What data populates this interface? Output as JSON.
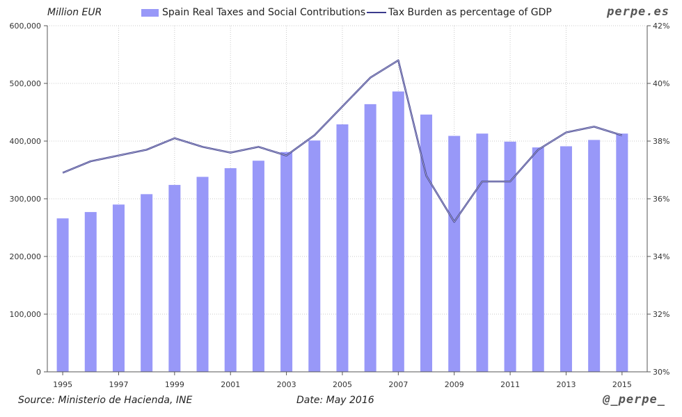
{
  "header": {
    "unit_label": "Million EUR",
    "legend_bar_label": "Spain Real Taxes and Social Contributions",
    "legend_line_label": "Tax Burden as percentage of GDP",
    "watermark": "perpe.es"
  },
  "footer": {
    "source": "Source: Ministerio de Hacienda, INE",
    "date": "Date: May 2016",
    "handle": "@_perpe_"
  },
  "colors": {
    "bar": "#9898f8",
    "line": "#3a3a8c",
    "grid": "#c8c8c8"
  },
  "chart_data": {
    "type": "bar+line",
    "categories": [
      "1995",
      "1996",
      "1997",
      "1998",
      "1999",
      "2000",
      "2001",
      "2002",
      "2003",
      "2004",
      "2005",
      "2006",
      "2007",
      "2008",
      "2009",
      "2010",
      "2011",
      "2012",
      "2013",
      "2014",
      "2015"
    ],
    "x_tick_labels": [
      "1995",
      "",
      "1997",
      "",
      "1999",
      "",
      "2001",
      "",
      "2003",
      "",
      "2005",
      "",
      "2007",
      "",
      "2009",
      "",
      "2011",
      "",
      "2013",
      "",
      "2015"
    ],
    "series": [
      {
        "name": "Spain Real Taxes and Social Contributions",
        "type": "bar",
        "axis": "left",
        "values": [
          266000,
          277000,
          290000,
          308000,
          324000,
          338000,
          353000,
          366000,
          381000,
          401000,
          429000,
          464000,
          486000,
          446000,
          409000,
          413000,
          399000,
          389000,
          391000,
          402000,
          413000
        ]
      },
      {
        "name": "Tax Burden as percentage of GDP",
        "type": "line",
        "axis": "right",
        "values": [
          36.9,
          37.3,
          37.5,
          37.7,
          38.1,
          37.8,
          37.6,
          37.8,
          37.5,
          38.2,
          39.2,
          40.2,
          40.8,
          36.8,
          35.2,
          36.6,
          36.6,
          37.7,
          38.3,
          38.5,
          38.2
        ]
      }
    ],
    "y_left": {
      "min": 0,
      "max": 600000,
      "ticks": [
        "0",
        "100,000",
        "200,000",
        "300,000",
        "400,000",
        "500,000",
        "600,000"
      ]
    },
    "y_right": {
      "min": 30,
      "max": 42,
      "ticks": [
        "30%",
        "32%",
        "34%",
        "36%",
        "38%",
        "40%",
        "42%"
      ]
    },
    "grid": true,
    "legend": "top"
  }
}
